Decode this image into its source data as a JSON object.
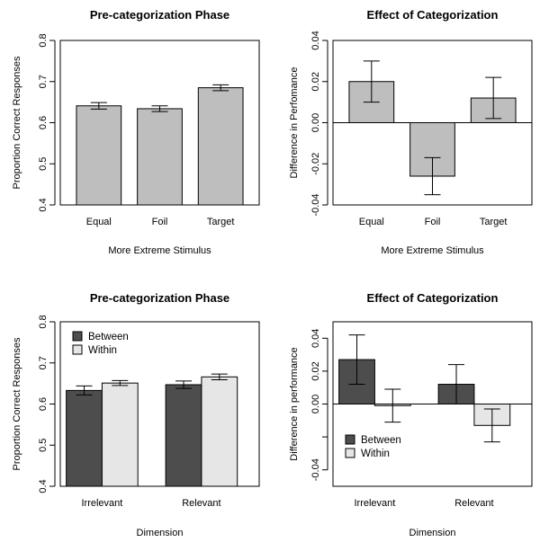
{
  "chart_data": [
    {
      "type": "bar",
      "title": "Pre-categorization Phase",
      "xlabel": "More Extreme Stimulus",
      "ylabel": "Proportion Correct Responses",
      "ylim": [
        0.4,
        0.8
      ],
      "yticks": [
        0.4,
        0.5,
        0.6,
        0.7,
        0.8
      ],
      "ytick_labels": [
        "0.4",
        "0.5",
        "0.6",
        "0.7",
        "0.8"
      ],
      "categories": [
        "Equal",
        "Foil",
        "Target"
      ],
      "series": [
        {
          "values": [
            0.641,
            0.634,
            0.685
          ],
          "errors": [
            0.008,
            0.007,
            0.007
          ],
          "color": "#bebebe"
        }
      ],
      "baseline": 0.4,
      "zero_line": false,
      "legend": null
    },
    {
      "type": "bar",
      "title": "Effect of Categorization",
      "xlabel": "More Extreme Stimulus",
      "ylabel": "Difference in Perfomance",
      "ylim": [
        -0.04,
        0.04
      ],
      "yticks": [
        -0.04,
        -0.02,
        0.0,
        0.02,
        0.04
      ],
      "ytick_labels": [
        "-0.04",
        "-0.02",
        "0.00",
        "0.02",
        "0.04"
      ],
      "categories": [
        "Equal",
        "Foil",
        "Target"
      ],
      "series": [
        {
          "values": [
            0.02,
            -0.026,
            0.012
          ],
          "errors": [
            0.01,
            0.009,
            0.01
          ],
          "color": "#bebebe"
        }
      ],
      "baseline": 0.0,
      "zero_line": true,
      "legend": null
    },
    {
      "type": "bar",
      "title": "Pre-categorization Phase",
      "xlabel": "Dimension",
      "ylabel": "Proportion Correct Responses",
      "ylim": [
        0.4,
        0.8
      ],
      "yticks": [
        0.4,
        0.5,
        0.6,
        0.7,
        0.8
      ],
      "ytick_labels": [
        "0.4",
        "0.5",
        "0.6",
        "0.7",
        "0.8"
      ],
      "categories": [
        "Irrelevant",
        "Relevant"
      ],
      "series": [
        {
          "name": "Between",
          "values": [
            0.633,
            0.647
          ],
          "errors": [
            0.011,
            0.009
          ],
          "color": "#4d4d4d"
        },
        {
          "name": "Within",
          "values": [
            0.651,
            0.666
          ],
          "errors": [
            0.006,
            0.007
          ],
          "color": "#e6e6e6"
        }
      ],
      "baseline": 0.4,
      "zero_line": false,
      "legend": "top-left"
    },
    {
      "type": "bar",
      "title": "Effect of Categorization",
      "xlabel": "Dimension",
      "ylabel": "Difference in performance",
      "ylim": [
        -0.05,
        0.05
      ],
      "yticks": [
        -0.04,
        -0.02,
        0.0,
        0.02,
        0.04
      ],
      "ytick_labels": [
        "-0.04",
        "",
        "0.00",
        "0.02",
        "0.04"
      ],
      "categories": [
        "Irrelevant",
        "Relevant"
      ],
      "series": [
        {
          "name": "Between",
          "values": [
            0.027,
            0.012
          ],
          "errors": [
            0.015,
            0.012
          ],
          "color": "#4d4d4d"
        },
        {
          "name": "Within",
          "values": [
            -0.001,
            -0.013
          ],
          "errors": [
            0.01,
            0.01
          ],
          "color": "#e6e6e6"
        }
      ],
      "baseline": 0.0,
      "zero_line": true,
      "legend": "bottom-left"
    }
  ]
}
